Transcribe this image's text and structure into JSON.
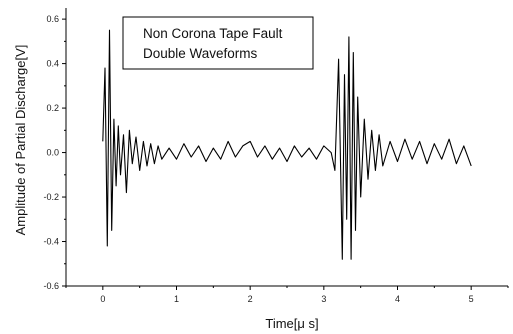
{
  "chart_data": {
    "type": "line",
    "title": "",
    "legend": [
      "Non Corona Tape Fault",
      "Double Waveforms"
    ],
    "legend_placement": "top-center",
    "xlabel": "Time[μ s]",
    "ylabel": "Amplitude of Partial Discharge[V]",
    "xlim": [
      -0.5,
      5.5
    ],
    "ylim": [
      -0.6,
      0.65
    ],
    "xticks": [
      0,
      1,
      2,
      3,
      4,
      5
    ],
    "xtick_labels": [
      "0",
      "1",
      "2",
      "3",
      "4",
      "5"
    ],
    "yticks": [
      -0.6,
      -0.4,
      -0.2,
      0.0,
      0.2,
      0.4,
      0.6
    ],
    "ytick_labels": [
      "-0.6",
      "-0.4",
      "-0.2",
      "0.0",
      "0.2",
      "0.4",
      "0.6"
    ],
    "grid": false,
    "series": [
      {
        "color": "#000000",
        "x": [
          0.0,
          0.03,
          0.06,
          0.09,
          0.12,
          0.15,
          0.18,
          0.21,
          0.24,
          0.28,
          0.32,
          0.36,
          0.4,
          0.45,
          0.5,
          0.55,
          0.6,
          0.65,
          0.7,
          0.75,
          0.8,
          0.9,
          1.0,
          1.1,
          1.2,
          1.3,
          1.4,
          1.5,
          1.6,
          1.7,
          1.8,
          1.9,
          2.0,
          2.1,
          2.2,
          2.3,
          2.4,
          2.5,
          2.6,
          2.7,
          2.8,
          2.9,
          3.0,
          3.1,
          3.15,
          3.2,
          3.25,
          3.28,
          3.31,
          3.34,
          3.37,
          3.4,
          3.43,
          3.46,
          3.5,
          3.55,
          3.6,
          3.65,
          3.7,
          3.75,
          3.8,
          3.9,
          4.0,
          4.1,
          4.2,
          4.3,
          4.4,
          4.5,
          4.6,
          4.7,
          4.8,
          4.9,
          5.0
        ],
        "y": [
          0.05,
          0.38,
          -0.42,
          0.55,
          -0.35,
          0.15,
          -0.15,
          0.12,
          -0.1,
          0.08,
          -0.18,
          0.1,
          -0.05,
          0.07,
          -0.08,
          0.05,
          -0.06,
          0.04,
          -0.05,
          0.03,
          -0.03,
          0.02,
          -0.03,
          0.04,
          -0.02,
          0.03,
          -0.04,
          0.02,
          -0.03,
          0.05,
          -0.02,
          0.03,
          0.05,
          -0.02,
          0.03,
          -0.03,
          0.02,
          -0.04,
          0.03,
          -0.02,
          0.02,
          -0.03,
          0.03,
          0.0,
          -0.08,
          0.42,
          -0.48,
          0.35,
          -0.3,
          0.52,
          -0.48,
          0.45,
          -0.35,
          0.25,
          -0.2,
          0.15,
          -0.12,
          0.1,
          -0.08,
          0.08,
          -0.06,
          0.05,
          -0.04,
          0.06,
          -0.03,
          0.05,
          -0.05,
          0.04,
          -0.03,
          0.06,
          -0.05,
          0.03,
          -0.06
        ]
      }
    ]
  }
}
